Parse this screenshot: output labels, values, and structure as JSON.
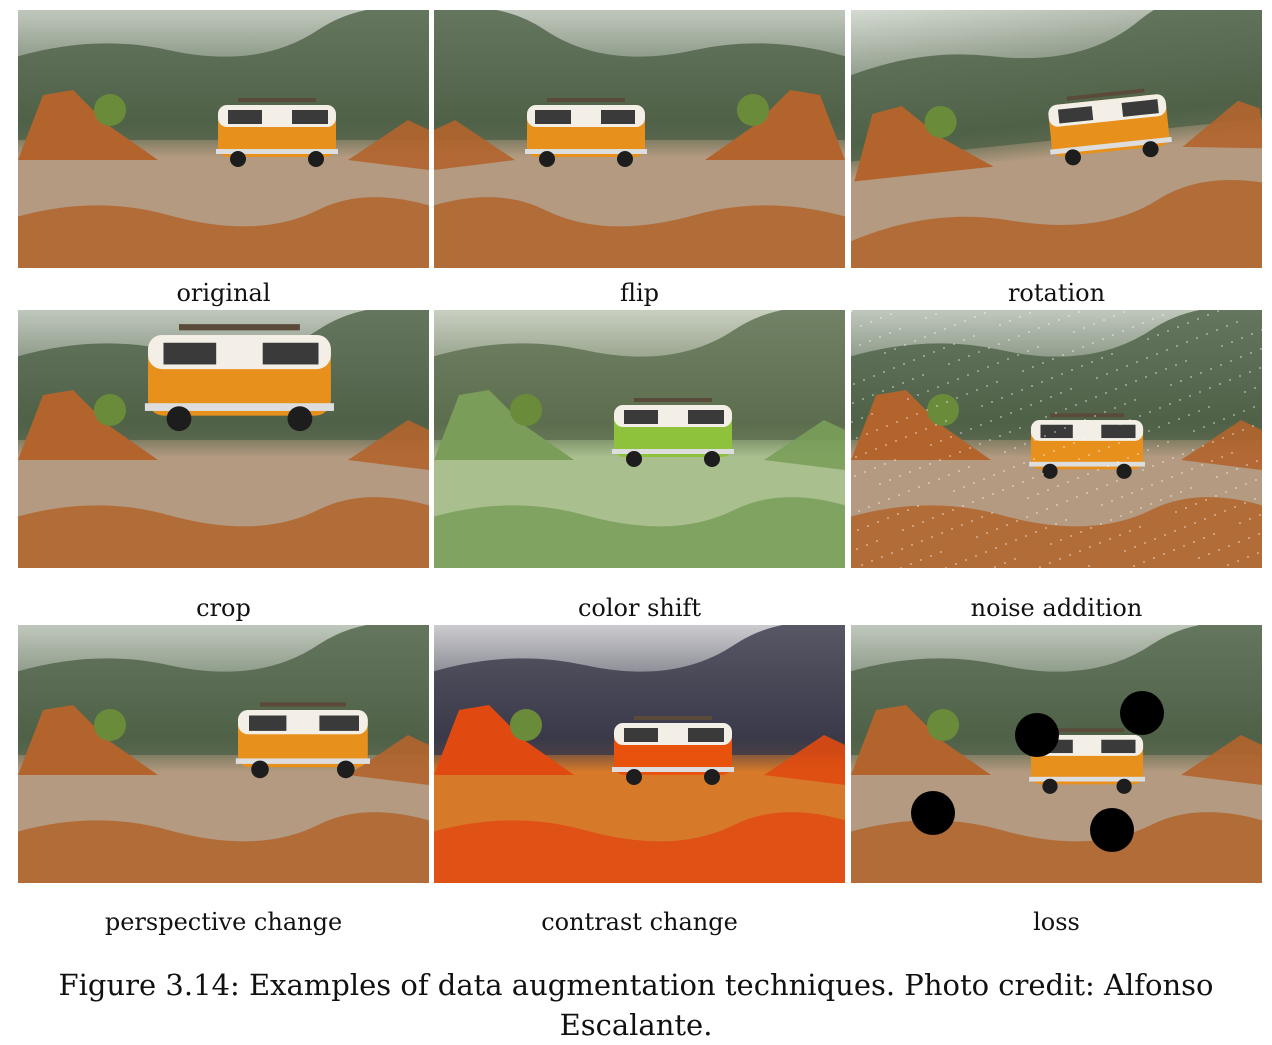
{
  "figure": {
    "caption": "Figure 3.14: Examples of data augmentation techniques. Photo credit: Alfonso Escalante.",
    "panels": [
      {
        "label": "original"
      },
      {
        "label": "flip"
      },
      {
        "label": "rotation"
      },
      {
        "label": "crop"
      },
      {
        "label": "color shift"
      },
      {
        "label": "noise addition"
      },
      {
        "label": "perspective change"
      },
      {
        "label": "contrast change"
      },
      {
        "label": "loss"
      }
    ]
  },
  "colors": {
    "van_orange": "#e8901c",
    "van_green": "#8fc23c",
    "sky": "#e8ece6",
    "hills": "#4f6147",
    "ground": "#b39a80",
    "rock": "#b2642c"
  }
}
